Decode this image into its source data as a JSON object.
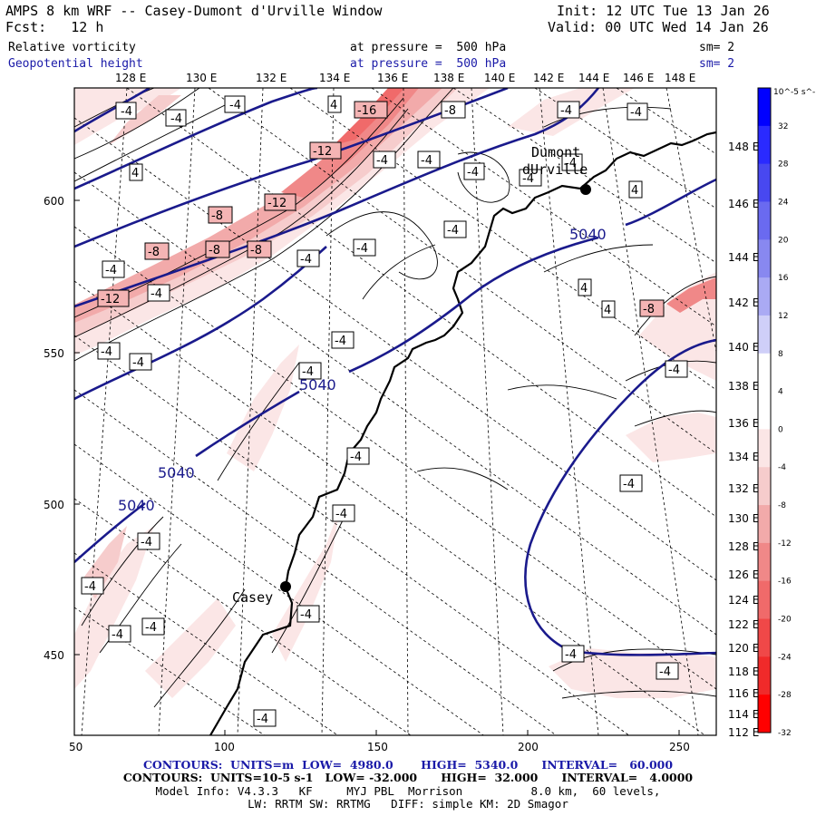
{
  "header": {
    "title": "AMPS 8 km WRF -- Casey-Dumont d'Urville Window",
    "init": "Init: 12 UTC Tue 13 Jan 26",
    "fcst": "Fcst:   12 h",
    "valid": "Valid: 00 UTC Wed 14 Jan 26",
    "field1_name": "Relative vorticity",
    "field1_level": "at pressure =  500 hPa",
    "field1_sm": "sm= 2",
    "field2_name": "Geopotential height",
    "field2_level": "at pressure =  500 hPa",
    "field2_sm": "sm= 2"
  },
  "top_longitudes": [
    "128 E",
    "130 E",
    "132 E",
    "134 E",
    "136 E",
    "138 E",
    "140 E",
    "142 E",
    "144 E",
    "146 E",
    "148 E"
  ],
  "right_longitudes": [
    "148 E",
    "146 E",
    "144 E",
    "142 E",
    "140 E",
    "138 E",
    "136 E",
    "134 E",
    "132 E",
    "130 E",
    "128 E",
    "126 E",
    "124 E",
    "122 E",
    "120 E",
    "118 E",
    "116 E",
    "114 E",
    "112 E"
  ],
  "x_ticks": [
    "50",
    "100",
    "150",
    "200",
    "250"
  ],
  "y_ticks": [
    "600",
    "550",
    "500",
    "450"
  ],
  "stations": [
    {
      "name": "Casey"
    },
    {
      "name": "Dumont\ndUrville"
    }
  ],
  "height_labels": [
    "5040",
    "5040",
    "5040",
    "5040"
  ],
  "vort_labels": [
    "-4",
    "-8",
    "-12",
    "-16"
  ],
  "colorbar": {
    "unit": "10^-5 s^-1",
    "labels": [
      "32",
      "28",
      "24",
      "20",
      "16",
      "12",
      "8",
      "4",
      "0",
      "-4",
      "-8",
      "-12",
      "-16",
      "-20",
      "-24",
      "-28",
      "-32"
    ],
    "colors": [
      "#0000ff",
      "#2a2aff",
      "#4848f0",
      "#6a6af0",
      "#8888f0",
      "#aaaaf4",
      "#cfcff8",
      "#ffffff",
      "#ffffff",
      "#fbe6e6",
      "#f6cccc",
      "#f2aaaa",
      "#f08888",
      "#f06a6a",
      "#f04848",
      "#f02a2a",
      "#ff0000"
    ]
  },
  "footer": {
    "line1": "CONTOURS:  UNITS=m  LOW=  4980.0       HIGH=  5340.0      INTERVAL=   60.000",
    "line2": "CONTOURS:  UNITS=10-5 s-1   LOW= -32.000      HIGH=  32.000      INTERVAL=   4.0000",
    "line3": "Model Info: V4.3.3   KF     MYJ PBL  Morrison          8.0 km,  60 levels,",
    "line4": "LW: RRTM SW: RRTMG   DIFF: simple KM: 2D Smagor"
  }
}
